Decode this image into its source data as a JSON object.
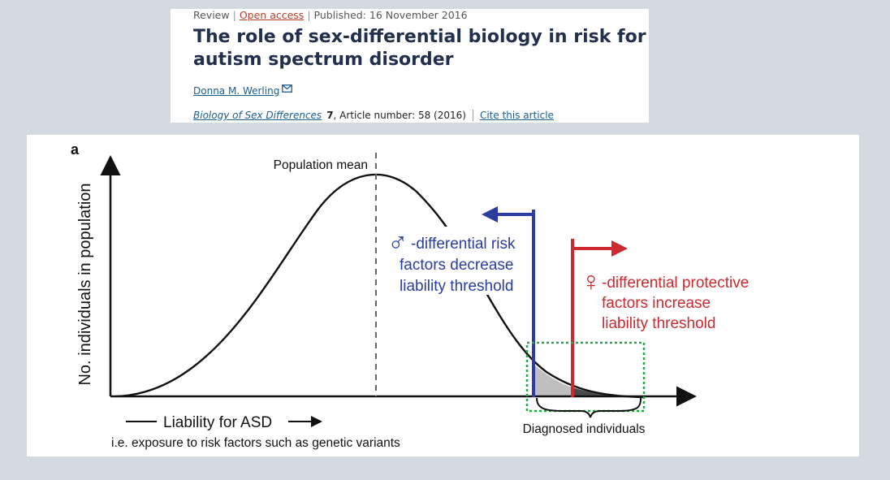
{
  "article": {
    "type": "Review",
    "access": "Open access",
    "published": "Published: 16 November 2016",
    "title": "The role of sex-differential biology in risk for autism spectrum disorder",
    "author": "Donna M. Werling",
    "journal": "Biology of Sex Differences",
    "volume": "7",
    "article_number": ", Article number: 58 (2016)",
    "cite_link": "Cite this article"
  },
  "figure": {
    "panel_label": "a",
    "population_mean_label": "Population mean",
    "ylabel": "No. individuals in population",
    "xlabel": "Liability for ASD",
    "xlabel_sub": "i.e. exposure to risk factors such as genetic variants",
    "male_text": [
      "-differential risk",
      "factors decrease",
      "liability threshold"
    ],
    "female_text": [
      "-differential protective",
      "factors increase",
      "liability threshold"
    ],
    "diagnosed_label": "Diagnosed individuals",
    "male_symbol": "♂",
    "female_symbol": "♀",
    "colors": {
      "male": "#2b3da0",
      "female": "#cc2a2f",
      "diagnosed_box": "#22aa44",
      "curve": "#111111"
    }
  }
}
